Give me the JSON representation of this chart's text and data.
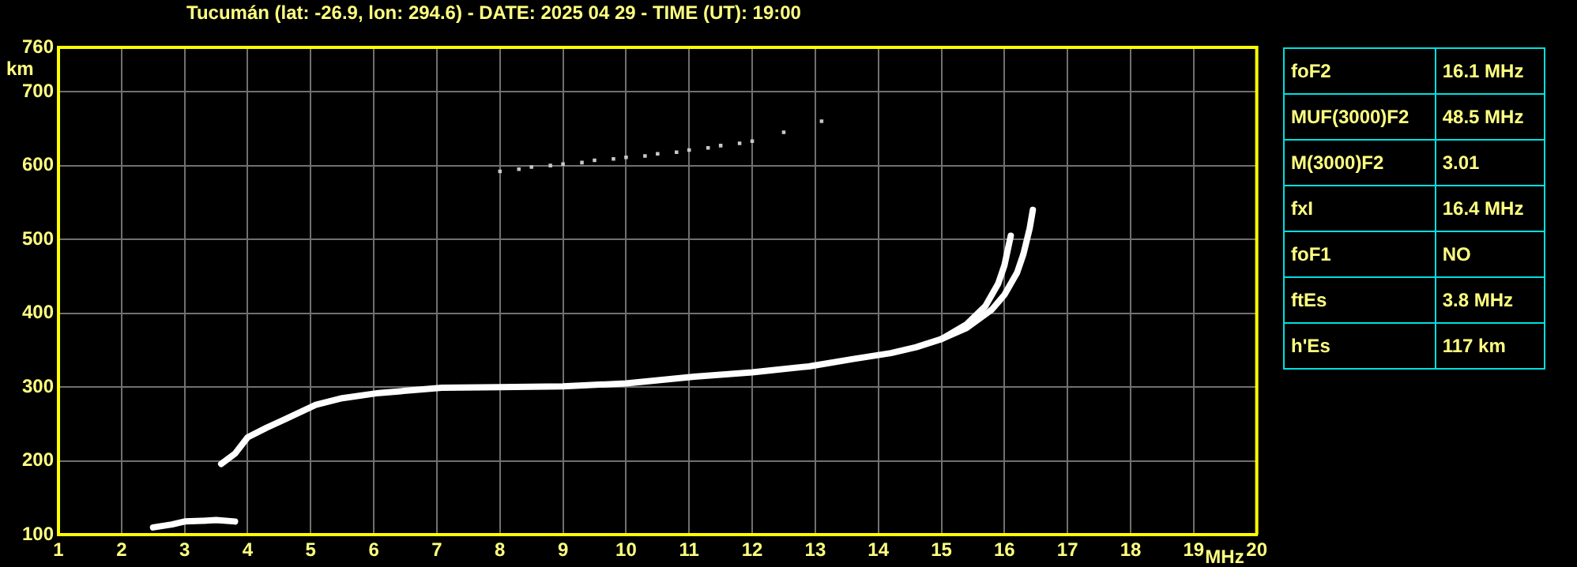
{
  "chart_data": {
    "type": "line",
    "title": "Tucumán (lat: -26.9, lon: 294.6) - DATE: 2025 04 29 - TIME (UT): 19:00",
    "xlabel": "MHz",
    "ylabel": "km",
    "xlim": [
      1,
      20
    ],
    "ylim": [
      100,
      760
    ],
    "xticks": [
      1,
      2,
      3,
      4,
      5,
      6,
      7,
      8,
      9,
      10,
      11,
      12,
      13,
      14,
      15,
      16,
      17,
      18,
      19,
      20
    ],
    "yticks": [
      100,
      200,
      300,
      400,
      500,
      600,
      700,
      760
    ],
    "grid": true,
    "legend": false,
    "marker": "none",
    "line_style": "solid",
    "series": [
      {
        "color": "#ffffff",
        "x": [
          3.58,
          3.8,
          4.0,
          4.3,
          4.58,
          5.08,
          5.5,
          6.08,
          7.08,
          8,
          9,
          10,
          11.08,
          12,
          12.9,
          13.6,
          14.2,
          14.6,
          15.0,
          15.4,
          15.7,
          15.9,
          16.0,
          16.05,
          16.1
        ],
        "values": [
          196,
          210,
          232,
          245,
          256,
          276,
          285,
          292,
          299,
          300,
          301,
          305,
          314,
          320,
          328,
          338,
          346,
          354,
          365,
          385,
          410,
          440,
          465,
          485,
          505
        ]
      },
      {
        "color": "#ffffff",
        "x": [
          15.0,
          15.4,
          15.8,
          16.0,
          16.2,
          16.3,
          16.4,
          16.45
        ],
        "values": [
          365,
          380,
          405,
          425,
          455,
          480,
          515,
          540
        ]
      },
      {
        "color": "#ffffff",
        "x": [
          2.5,
          2.8,
          3.0,
          3.3,
          3.5,
          3.8
        ],
        "values": [
          110,
          114,
          118,
          119,
          120,
          118
        ]
      },
      {
        "type": "scatter",
        "marker": "square",
        "color": "#c8c8c8",
        "x": [
          8.0,
          8.3,
          8.5,
          8.8,
          9,
          9.3,
          9.5,
          9.8,
          10,
          10.3,
          10.5,
          10.8,
          11,
          11.3,
          11.5,
          11.8,
          12,
          12.5,
          13.1
        ],
        "values": [
          592,
          595,
          598,
          600,
          602,
          604,
          607,
          609,
          611,
          613,
          616,
          618,
          621,
          624,
          627,
          630,
          633,
          645,
          660
        ]
      }
    ],
    "annotations": [
      "foF2",
      "16.1 MHz",
      "MUF(3000)F2",
      "48.5 MHz",
      "M(3000)F2",
      "3.01",
      "fxI",
      "16.4 MHz",
      "foF1",
      "NO",
      "ftEs",
      "3.8 MHz",
      "h'Es",
      "117 km"
    ]
  }
}
